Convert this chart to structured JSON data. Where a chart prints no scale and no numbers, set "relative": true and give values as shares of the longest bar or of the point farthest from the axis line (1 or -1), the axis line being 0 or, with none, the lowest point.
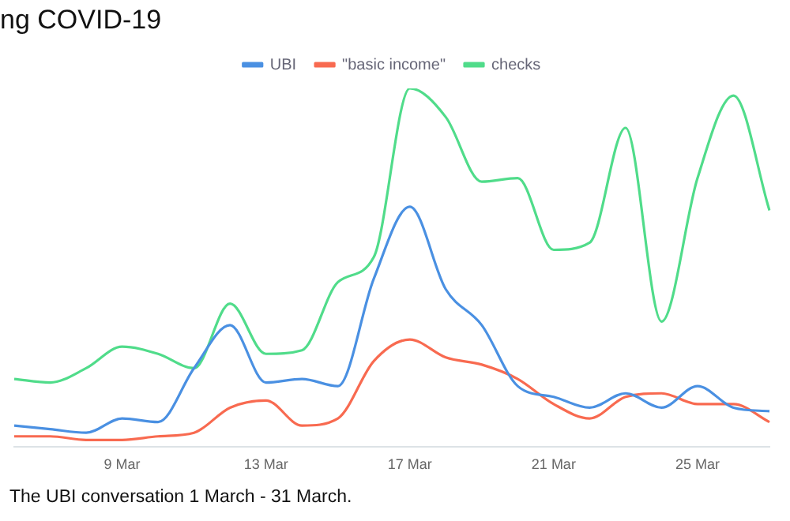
{
  "chart_data": {
    "type": "line",
    "title": "ng COVID-19",
    "relative": true,
    "legend": "top",
    "marker": "none",
    "grid": false,
    "categories": [
      null,
      null,
      null,
      "9 Mar",
      null,
      null,
      null,
      "13 Mar",
      null,
      null,
      null,
      "17 Mar",
      null,
      null,
      null,
      "21 Mar",
      null,
      null,
      null,
      "25 Mar",
      null,
      null
    ],
    "series": [
      {
        "name": "UBI",
        "color": "#4a90e2",
        "values": [
          0.06,
          0.05,
          0.04,
          0.08,
          0.07,
          0.22,
          0.34,
          0.18,
          0.19,
          0.17,
          0.47,
          0.67,
          0.44,
          0.34,
          0.17,
          0.14,
          0.11,
          0.15,
          0.11,
          0.17,
          0.11,
          0.1
        ]
      },
      {
        "name": "\"basic income\"",
        "color": "#f86a50",
        "values": [
          0.03,
          0.03,
          0.02,
          0.02,
          0.03,
          0.04,
          0.11,
          0.13,
          0.06,
          0.08,
          0.24,
          0.3,
          0.25,
          0.23,
          0.19,
          0.12,
          0.08,
          0.14,
          0.15,
          0.12,
          0.12,
          0.07
        ]
      },
      {
        "name": "checks",
        "color": "#50dc8a",
        "values": [
          0.19,
          0.18,
          0.22,
          0.28,
          0.26,
          0.22,
          0.4,
          0.26,
          0.27,
          0.46,
          0.53,
          1,
          0.92,
          0.74,
          0.75,
          0.55,
          0.57,
          0.89,
          0.35,
          0.75,
          0.98,
          0.66
        ]
      }
    ],
    "annotations": [
      "The UBI conversation 1 March - 31 March."
    ]
  }
}
